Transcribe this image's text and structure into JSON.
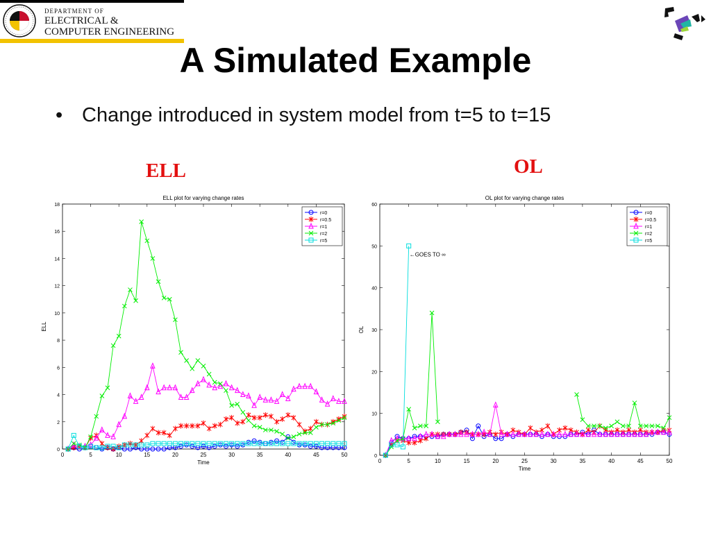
{
  "header": {
    "dept_line1": "DEPARTMENT OF",
    "dept_line2": "ELECTRICAL &",
    "dept_line3": "COMPUTER ENGINEERING",
    "seal_text": "UNIVERSITY OF MARYLAND"
  },
  "slide": {
    "title": "A Simulated Example",
    "bullet": "Change introduced in system model from t=5 to t=15",
    "left_label": "ELL",
    "right_label": "OL"
  },
  "chart_data": [
    {
      "type": "line",
      "title": "ELL plot for varying change rates",
      "xlabel": "Time",
      "ylabel": "ELL",
      "xlim": [
        0,
        50
      ],
      "ylim": [
        0,
        18
      ],
      "xticks": [
        0,
        5,
        10,
        15,
        20,
        25,
        30,
        35,
        40,
        45,
        50
      ],
      "yticks": [
        0,
        2,
        4,
        6,
        8,
        10,
        12,
        14,
        16,
        18
      ],
      "grid": false,
      "legend_position": "top-right",
      "series": [
        {
          "name": "r=0",
          "color": "#0000ff",
          "marker": "o",
          "x": [
            1,
            2,
            3,
            4,
            5,
            6,
            7,
            8,
            9,
            10,
            11,
            12,
            13,
            14,
            15,
            16,
            17,
            18,
            19,
            20,
            21,
            22,
            23,
            24,
            25,
            26,
            27,
            28,
            29,
            30,
            31,
            32,
            33,
            34,
            35,
            36,
            37,
            38,
            39,
            40,
            41,
            42,
            43,
            44,
            45,
            46,
            47,
            48,
            49,
            50
          ],
          "y": [
            0,
            0.1,
            0,
            0.1,
            0.2,
            0.1,
            0,
            0.1,
            0,
            0.1,
            0,
            0,
            0.1,
            0,
            0,
            0,
            0,
            0,
            0.1,
            0.1,
            0.2,
            0.3,
            0.2,
            0.1,
            0.2,
            0.1,
            0.2,
            0.3,
            0.2,
            0.3,
            0.2,
            0.3,
            0.5,
            0.6,
            0.5,
            0.4,
            0.5,
            0.6,
            0.5,
            0.9,
            0.5,
            0.3,
            0.3,
            0.2,
            0.2,
            0.1,
            0.1,
            0.1,
            0.1,
            0.1
          ]
        },
        {
          "name": "r=0.5",
          "color": "#ff0000",
          "marker": "*",
          "x": [
            1,
            2,
            3,
            4,
            5,
            6,
            7,
            8,
            9,
            10,
            11,
            12,
            13,
            14,
            15,
            16,
            17,
            18,
            19,
            20,
            21,
            22,
            23,
            24,
            25,
            26,
            27,
            28,
            29,
            30,
            31,
            32,
            33,
            34,
            35,
            36,
            37,
            38,
            39,
            40,
            41,
            42,
            43,
            44,
            45,
            46,
            47,
            48,
            49,
            50
          ],
          "y": [
            0,
            0.1,
            0.2,
            0.1,
            0.8,
            1.0,
            0.4,
            0.1,
            0.0,
            0.2,
            0.3,
            0.4,
            0.3,
            0.6,
            1.0,
            1.5,
            1.2,
            1.2,
            1.0,
            1.5,
            1.7,
            1.7,
            1.7,
            1.7,
            1.9,
            1.5,
            1.7,
            1.8,
            2.2,
            2.3,
            1.9,
            2.0,
            2.5,
            2.3,
            2.3,
            2.5,
            2.4,
            2.0,
            2.2,
            2.5,
            2.3,
            1.8,
            1.3,
            1.5,
            2.0,
            1.8,
            1.8,
            2.0,
            2.2,
            2.4
          ]
        },
        {
          "name": "r=1",
          "color": "#ff00ff",
          "marker": "^",
          "x": [
            1,
            2,
            3,
            4,
            5,
            6,
            7,
            8,
            9,
            10,
            11,
            12,
            13,
            14,
            15,
            16,
            17,
            18,
            19,
            20,
            21,
            22,
            23,
            24,
            25,
            26,
            27,
            28,
            29,
            30,
            31,
            32,
            33,
            34,
            35,
            36,
            37,
            38,
            39,
            40,
            41,
            42,
            43,
            44,
            45,
            46,
            47,
            48,
            49,
            50
          ],
          "y": [
            0,
            0.3,
            0.2,
            0.2,
            0.3,
            0.8,
            1.4,
            1.0,
            0.9,
            1.8,
            2.4,
            3.9,
            3.5,
            3.8,
            4.5,
            6.1,
            4.2,
            4.5,
            4.5,
            4.5,
            3.8,
            3.8,
            4.3,
            4.8,
            5.1,
            4.7,
            4.5,
            4.6,
            4.8,
            4.5,
            4.3,
            4.0,
            3.9,
            3.2,
            3.8,
            3.6,
            3.6,
            3.5,
            4.0,
            3.7,
            4.4,
            4.6,
            4.6,
            4.6,
            4.2,
            3.6,
            3.3,
            3.7,
            3.5,
            3.5
          ]
        },
        {
          "name": "r=2",
          "color": "#00ee00",
          "marker": "x",
          "x": [
            1,
            2,
            3,
            4,
            5,
            6,
            7,
            8,
            9,
            10,
            11,
            12,
            13,
            14,
            15,
            16,
            17,
            18,
            19,
            20,
            21,
            22,
            23,
            24,
            25,
            26,
            27,
            28,
            29,
            30,
            31,
            32,
            33,
            34,
            35,
            36,
            37,
            38,
            39,
            40,
            41,
            42,
            43,
            44,
            45,
            46,
            47,
            48,
            49,
            50
          ],
          "y": [
            0,
            0.4,
            0.3,
            0.1,
            0.9,
            2.4,
            3.9,
            4.5,
            7.6,
            8.3,
            10.5,
            11.7,
            10.9,
            16.7,
            15.3,
            14.0,
            12.3,
            11.1,
            11.0,
            9.5,
            7.1,
            6.5,
            5.9,
            6.5,
            6.1,
            5.5,
            4.9,
            4.8,
            4.3,
            3.2,
            3.3,
            2.7,
            2.1,
            1.7,
            1.6,
            1.4,
            1.4,
            1.3,
            1.1,
            0.8,
            0.9,
            1.1,
            1.2,
            1.2,
            1.6,
            1.8,
            1.8,
            1.9,
            2.1,
            2.3
          ]
        },
        {
          "name": "r=5",
          "color": "#00dddd",
          "marker": "s",
          "x": [
            1,
            2,
            3,
            4,
            5,
            6,
            7,
            8,
            9,
            10,
            11,
            12,
            13,
            14,
            15,
            16,
            17,
            18,
            19,
            20,
            21,
            22,
            23,
            24,
            25,
            26,
            27,
            28,
            29,
            30,
            31,
            32,
            33,
            34,
            35,
            36,
            37,
            38,
            39,
            40,
            41,
            42,
            43,
            44,
            45,
            46,
            47,
            48,
            49,
            50
          ],
          "y": [
            0,
            1.0,
            0.2,
            0.1,
            0.2,
            0.1,
            0.1,
            0.2,
            0.2,
            0.1,
            0.3,
            0.3,
            0.3,
            0.3,
            0.3,
            0.4,
            0.4,
            0.4,
            0.4,
            0.4,
            0.4,
            0.4,
            0.4,
            0.4,
            0.4,
            0.4,
            0.4,
            0.4,
            0.4,
            0.4,
            0.4,
            0.4,
            0.4,
            0.4,
            0.4,
            0.4,
            0.4,
            0.4,
            0.4,
            0.4,
            0.4,
            0.4,
            0.4,
            0.4,
            0.4,
            0.4,
            0.4,
            0.4,
            0.4,
            0.4
          ]
        }
      ]
    },
    {
      "type": "line",
      "title": "OL plot for varying change rates",
      "xlabel": "Time",
      "ylabel": "OL",
      "xlim": [
        0,
        50
      ],
      "ylim": [
        0,
        60
      ],
      "xticks": [
        0,
        5,
        10,
        15,
        20,
        25,
        30,
        35,
        40,
        45,
        50
      ],
      "yticks": [
        0,
        10,
        20,
        30,
        40,
        50,
        60
      ],
      "grid": false,
      "legend_position": "top-right",
      "annotations": [
        {
          "text": "←GOES TO ∞",
          "x": 5,
          "y": 48
        }
      ],
      "series": [
        {
          "name": "r=0",
          "color": "#0000ff",
          "marker": "o",
          "x": [
            1,
            2,
            3,
            4,
            5,
            6,
            7,
            8,
            9,
            10,
            11,
            12,
            13,
            14,
            15,
            16,
            17,
            18,
            19,
            20,
            21,
            22,
            23,
            24,
            25,
            26,
            27,
            28,
            29,
            30,
            31,
            32,
            33,
            34,
            35,
            36,
            37,
            38,
            39,
            40,
            41,
            42,
            43,
            44,
            45,
            46,
            47,
            48,
            49,
            50
          ],
          "y": [
            0,
            3,
            4.5,
            4,
            4,
            4.5,
            4.5,
            4.5,
            4.5,
            4.5,
            5,
            5,
            5,
            5.5,
            6,
            4,
            7,
            4.5,
            5,
            4,
            4,
            5,
            4.5,
            5,
            5,
            5,
            5,
            4.5,
            5,
            4.5,
            4.5,
            4.5,
            5,
            5,
            5.5,
            5,
            6,
            5,
            5,
            5,
            5,
            5,
            5,
            5,
            5,
            5,
            5,
            5.5,
            5.5,
            5
          ]
        },
        {
          "name": "r=0.5",
          "color": "#ff0000",
          "marker": "*",
          "x": [
            1,
            2,
            3,
            4,
            5,
            6,
            7,
            8,
            9,
            10,
            11,
            12,
            13,
            14,
            15,
            16,
            17,
            18,
            19,
            20,
            21,
            22,
            23,
            24,
            25,
            26,
            27,
            28,
            29,
            30,
            31,
            32,
            33,
            34,
            35,
            36,
            37,
            38,
            39,
            40,
            41,
            42,
            43,
            44,
            45,
            46,
            47,
            48,
            49,
            50
          ],
          "y": [
            0,
            2.5,
            3.5,
            3.5,
            3,
            3,
            3.5,
            4,
            5,
            5,
            5,
            5,
            5,
            5.5,
            5.5,
            5,
            5,
            5,
            5.5,
            5,
            5.5,
            5,
            6,
            5.5,
            5,
            6.5,
            5.5,
            6,
            7,
            5,
            6,
            6.5,
            6,
            5.5,
            5,
            6,
            5.5,
            7,
            6,
            5.5,
            6,
            5.5,
            6,
            5.5,
            6,
            5.5,
            5.5,
            5.5,
            6,
            6
          ]
        },
        {
          "name": "r=1",
          "color": "#ff00ff",
          "marker": "^",
          "x": [
            1,
            2,
            3,
            4,
            5,
            6,
            7,
            8,
            9,
            10,
            11,
            12,
            13,
            14,
            15,
            16,
            17,
            18,
            19,
            20,
            21,
            22,
            23,
            24,
            25,
            26,
            27,
            28,
            29,
            30,
            31,
            32,
            33,
            34,
            35,
            36,
            37,
            38,
            39,
            40,
            41,
            42,
            43,
            44,
            45,
            46,
            47,
            48,
            49,
            50
          ],
          "y": [
            0,
            3.5,
            4,
            4,
            4,
            4,
            4.5,
            5,
            5,
            4.5,
            4.5,
            5,
            5,
            5,
            5,
            5,
            5,
            5.5,
            5,
            12,
            5,
            5,
            5,
            5,
            5,
            5,
            5,
            5,
            5,
            5,
            5,
            5,
            5,
            5,
            5,
            5,
            5,
            5,
            5,
            5,
            5,
            5,
            5,
            5,
            5,
            5,
            5.5,
            5.5,
            5.5,
            5.5
          ]
        },
        {
          "name": "r=2",
          "color": "#00ee00",
          "marker": "x",
          "x": [
            1,
            2,
            3,
            4,
            5,
            6,
            7,
            8,
            9,
            10,
            11,
            null,
            34,
            35,
            36,
            37,
            38,
            39,
            40,
            41,
            42,
            43,
            44,
            45,
            46,
            47,
            48,
            49,
            50
          ],
          "y": [
            0,
            2,
            3.5,
            4,
            11,
            6.5,
            7,
            7,
            34,
            8,
            null,
            null,
            14.5,
            8.5,
            7,
            7,
            7,
            6.5,
            7,
            8,
            7,
            7,
            12.5,
            7,
            7,
            7,
            7,
            6.5,
            9
          ]
        },
        {
          "name": "r=5",
          "color": "#00dddd",
          "marker": "s",
          "x": [
            1,
            2,
            3,
            4,
            5
          ],
          "y": [
            0,
            2.5,
            2.5,
            2,
            50
          ]
        }
      ]
    }
  ]
}
